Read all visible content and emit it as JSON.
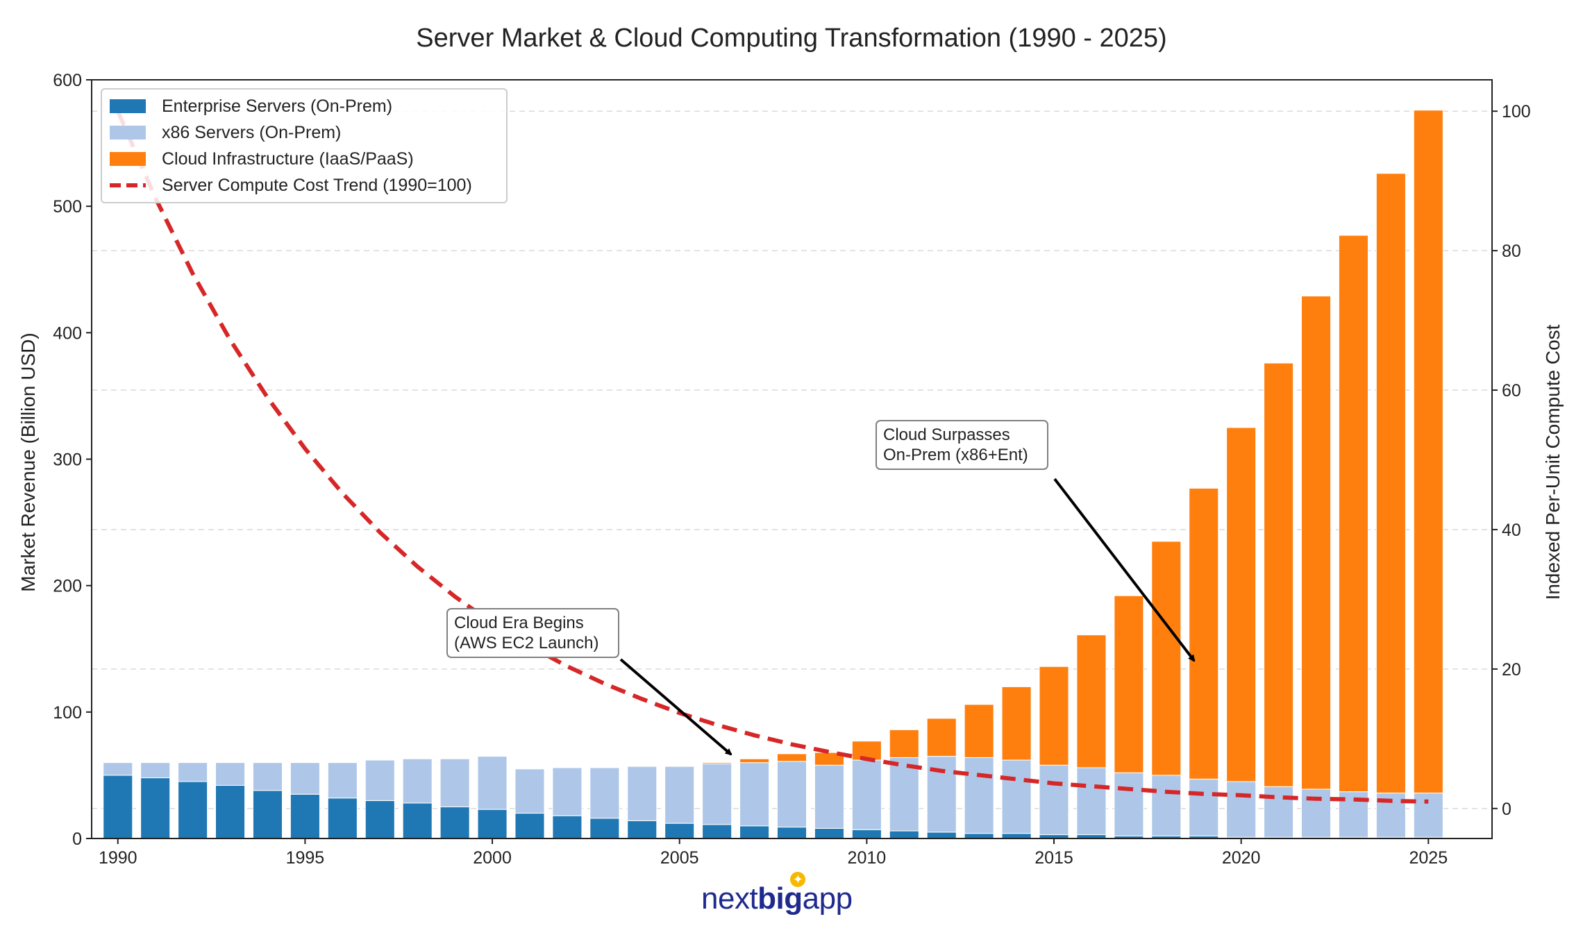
{
  "chart_data": {
    "type": "bar",
    "title": "Server Market & Cloud Computing Transformation (1990 - 2025)",
    "xlabel": "",
    "ylabel": "Market Revenue (Billion USD)",
    "y2label": "Indexed Per-Unit Compute Cost",
    "ylim": [
      0,
      600
    ],
    "y2lim": [
      -4.3,
      104.5
    ],
    "xlim": [
      1989.3,
      2026.7
    ],
    "yticks": [
      0,
      100,
      200,
      300,
      400,
      500,
      600
    ],
    "y2ticks": [
      0,
      20,
      40,
      60,
      80,
      100
    ],
    "xticks": [
      1990,
      1995,
      2000,
      2005,
      2010,
      2015,
      2020,
      2025
    ],
    "grid": true,
    "stacked": true,
    "legend_position": "upper-left",
    "x": [
      1990,
      1991,
      1992,
      1993,
      1994,
      1995,
      1996,
      1997,
      1998,
      1999,
      2000,
      2001,
      2002,
      2003,
      2004,
      2005,
      2006,
      2007,
      2008,
      2009,
      2010,
      2011,
      2012,
      2013,
      2014,
      2015,
      2016,
      2017,
      2018,
      2019,
      2020,
      2021,
      2022,
      2023,
      2024,
      2025
    ],
    "series": [
      {
        "name": "Enterprise Servers (On-Prem)",
        "color": "#1f77b4",
        "axis": "left",
        "values": [
          50,
          48,
          45,
          42,
          38,
          35,
          32,
          30,
          28,
          25,
          23,
          20,
          18,
          16,
          14,
          12,
          11,
          10,
          9,
          8,
          7,
          6,
          5,
          4,
          4,
          3,
          3,
          2,
          2,
          2,
          1,
          1,
          1,
          1,
          1,
          1
        ]
      },
      {
        "name": "x86 Servers (On-Prem)",
        "color": "#aec7e8",
        "axis": "left",
        "values": [
          10,
          12,
          15,
          18,
          22,
          25,
          28,
          32,
          35,
          38,
          42,
          35,
          38,
          40,
          43,
          45,
          48,
          50,
          52,
          50,
          55,
          58,
          60,
          60,
          58,
          55,
          53,
          50,
          48,
          45,
          44,
          40,
          38,
          36,
          35,
          35
        ]
      },
      {
        "name": "Cloud Infrastructure (IaaS/PaaS)",
        "color": "#ff7f0e",
        "axis": "left",
        "values": [
          0,
          0,
          0,
          0,
          0,
          0,
          0,
          0,
          0,
          0,
          0,
          0,
          0,
          0,
          0,
          0,
          1,
          3,
          6,
          10,
          15,
          22,
          30,
          42,
          58,
          78,
          105,
          140,
          185,
          230,
          280,
          335,
          390,
          440,
          490,
          540
        ]
      },
      {
        "name": "Server Compute Cost Trend (1990=100)",
        "color": "#d62728",
        "axis": "right",
        "style": "dashed",
        "values": [
          100,
          87.6,
          76.7,
          67.2,
          58.9,
          51.6,
          45.2,
          39.6,
          34.7,
          30.4,
          26.6,
          23.3,
          20.4,
          17.9,
          15.7,
          13.7,
          12.0,
          10.5,
          9.2,
          8.1,
          7.1,
          6.2,
          5.4,
          4.8,
          4.2,
          3.6,
          3.2,
          2.8,
          2.4,
          2.1,
          1.9,
          1.6,
          1.4,
          1.3,
          1.1,
          1.0
        ]
      }
    ],
    "annotations": [
      {
        "text": [
          "Cloud Era Begins",
          "(AWS EC2 Launch)"
        ],
        "target_x": 2006,
        "target_y": 58,
        "text_x": 1998,
        "text_y": 155
      },
      {
        "text": [
          "Cloud Surpasses",
          "On-Prem (x86+Ent)"
        ],
        "target_x": 2019,
        "target_y": 138,
        "text_x": 2010,
        "text_y": 305
      }
    ]
  },
  "logo": {
    "part1": "next",
    "part2": "big",
    "part3": "app"
  }
}
